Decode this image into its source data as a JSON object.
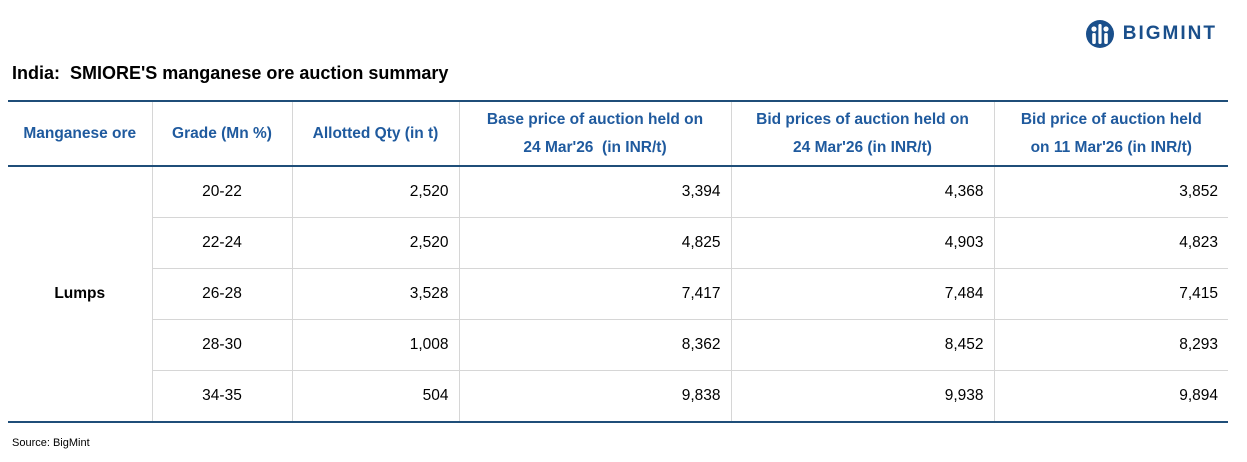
{
  "brand": {
    "name": "BIGMINT",
    "color": "#1a4f8b",
    "icon": "bigmint-logo-icon"
  },
  "chart_data": {
    "type": "table",
    "title": "India:  SMIORE'S manganese ore auction summary",
    "columns": [
      "Manganese ore",
      "Grade (Mn %)",
      "Allotted Qty (in t)",
      "Base price of auction held on 24 Mar'26  (in INR/t)",
      "Bid prices of auction held on 24 Mar'26 (in INR/t)",
      "Bid price of auction held on 11 Mar'26 (in INR/t)"
    ],
    "header": {
      "col1": "Manganese ore",
      "col2": "Grade (Mn %)",
      "col3": "Allotted Qty (in t)",
      "col4_line1": "Base price of auction held on",
      "col4_line2": "24 Mar'26  (in INR/t)",
      "col5_line1": "Bid prices of auction held on",
      "col5_line2": "24 Mar'26 (in INR/t)",
      "col6_line1": "Bid price of auction held",
      "col6_line2": "on 11 Mar'26 (in INR/t)"
    },
    "ore_type": "Lumps",
    "rows": [
      {
        "grade": "20-22",
        "qty": "2,520",
        "base_price": "3,394",
        "bid_24mar": "4,368",
        "bid_11mar": "3,852"
      },
      {
        "grade": "22-24",
        "qty": "2,520",
        "base_price": "4,825",
        "bid_24mar": "4,903",
        "bid_11mar": "4,823"
      },
      {
        "grade": "26-28",
        "qty": "3,528",
        "base_price": "7,417",
        "bid_24mar": "7,484",
        "bid_11mar": "7,415"
      },
      {
        "grade": "28-30",
        "qty": "1,008",
        "base_price": "8,362",
        "bid_24mar": "8,452",
        "bid_11mar": "8,293"
      },
      {
        "grade": "34-35",
        "qty": "504",
        "base_price": "9,838",
        "bid_24mar": "9,938",
        "bid_11mar": "9,894"
      }
    ],
    "source": "Source: BigMint",
    "colors": {
      "header_text": "#1f5a9e",
      "rule": "#1f4e79",
      "grid": "#d6d6d6"
    }
  }
}
